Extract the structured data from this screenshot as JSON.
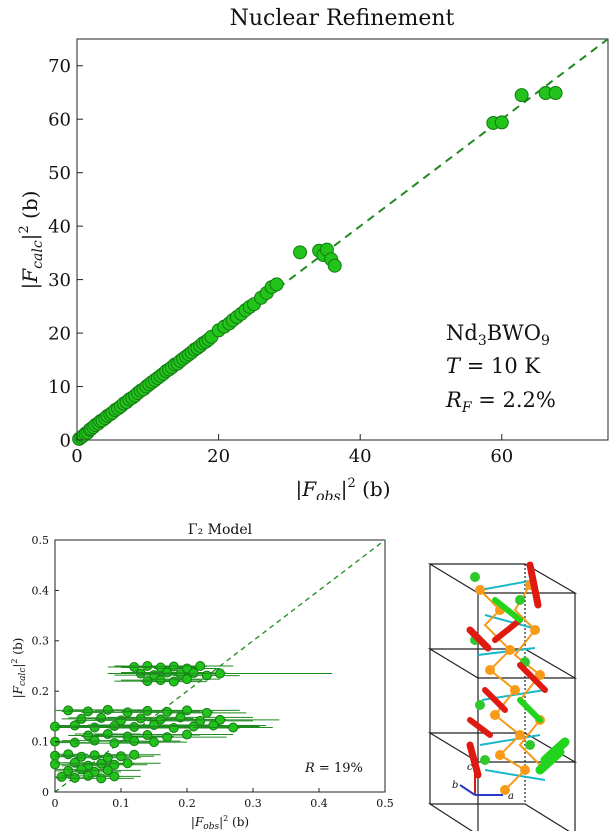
{
  "chart_data": [
    {
      "type": "scatter",
      "title": "Nuclear Refinement",
      "xlabel": "|F_obs|² (b)",
      "ylabel": "|F_calc|² (b)",
      "xlim": [
        0,
        75
      ],
      "ylim": [
        0,
        75
      ],
      "xticks": [
        "0",
        "20",
        "40",
        "60"
      ],
      "yticks": [
        "0",
        "10",
        "20",
        "30",
        "40",
        "50",
        "60",
        "70"
      ],
      "grid": false,
      "reference_line": {
        "style": "dashed",
        "from": [
          0,
          0
        ],
        "to": [
          75,
          75
        ]
      },
      "annotation": [
        "Nd₃BWO₉",
        "T = 10 K",
        "R_F = 2.2%"
      ],
      "colors": {
        "marker": "#22c31b",
        "marker_edge": "#137a12",
        "line": "#1f8a1f"
      },
      "series": [
        {
          "x": [
            0.3,
            0.6,
            0.9,
            1.2,
            1.5,
            1.8,
            2.0,
            2.3,
            2.6,
            3.0,
            3.3,
            3.6,
            4.0,
            4.3,
            4.7,
            5.0,
            5.4,
            5.8,
            6.2,
            6.6,
            7.0,
            7.4,
            7.8,
            8.2,
            8.6,
            9.0,
            9.4,
            9.8,
            10.2,
            10.6,
            11.0,
            11.4,
            11.8,
            12.2,
            12.6,
            13.0,
            13.4,
            13.8,
            14.2,
            14.6,
            15.0,
            15.4,
            15.8,
            16.2,
            16.6,
            17.0,
            17.4,
            17.8,
            18.2,
            18.6,
            19.0,
            20.0,
            20.8,
            21.5,
            22.0,
            22.6,
            23.2,
            23.8,
            24.4,
            25.0,
            26.0,
            26.8,
            27.5,
            28.2,
            31.5,
            34.2,
            34.8,
            35.3,
            35.9,
            36.4,
            58.8,
            60.0,
            62.8,
            66.2,
            67.6
          ],
          "y": [
            0.2,
            0.5,
            0.8,
            1.2,
            1.4,
            1.9,
            2.1,
            2.4,
            2.8,
            3.1,
            3.5,
            3.7,
            4.1,
            4.5,
            4.8,
            5.1,
            5.6,
            5.9,
            6.3,
            6.8,
            7.1,
            7.6,
            7.9,
            8.3,
            8.8,
            9.2,
            9.5,
            10.0,
            10.4,
            10.8,
            11.2,
            11.6,
            12.0,
            12.4,
            12.9,
            13.2,
            13.6,
            14.1,
            14.3,
            14.8,
            15.2,
            15.6,
            16.0,
            16.4,
            16.9,
            17.2,
            17.6,
            18.1,
            18.4,
            18.8,
            19.3,
            20.5,
            21.2,
            21.8,
            22.4,
            23.0,
            23.6,
            24.3,
            24.9,
            25.4,
            26.6,
            27.5,
            28.6,
            29.1,
            35.1,
            35.4,
            34.6,
            35.6,
            33.8,
            32.6,
            59.3,
            59.4,
            64.5,
            64.9,
            64.9
          ]
        }
      ]
    },
    {
      "type": "scatter",
      "title": "Γ₂ Model",
      "xlabel": "|F_obs|² (b)",
      "ylabel": "|F_calc|² (b)",
      "xlim": [
        0,
        0.5
      ],
      "ylim": [
        0,
        0.5
      ],
      "xticks": [
        "0",
        "0.1",
        "0.2",
        "0.3",
        "0.4",
        "0.5"
      ],
      "yticks": [
        "0",
        "0.1",
        "0.2",
        "0.3",
        "0.4",
        "0.5"
      ],
      "grid": false,
      "reference_line": {
        "style": "dashed",
        "from": [
          0,
          0
        ],
        "to": [
          0.5,
          0.5
        ]
      },
      "annotation": [
        "R = 19%"
      ],
      "colors": {
        "marker": "#22c31b",
        "marker_edge": "#137a12",
        "line": "#1f8a1f"
      },
      "series": [
        {
          "x": [
            0.12,
            0.14,
            0.16,
            0.18,
            0.2,
            0.22,
            0.13,
            0.15,
            0.17,
            0.19,
            0.21,
            0.23,
            0.25,
            0.14,
            0.16,
            0.18,
            0.2,
            0.02,
            0.05,
            0.08,
            0.11,
            0.14,
            0.17,
            0.2,
            0.23,
            0.04,
            0.07,
            0.1,
            0.13,
            0.16,
            0.19,
            0.22,
            0.25,
            0.0,
            0.03,
            0.06,
            0.09,
            0.12,
            0.15,
            0.18,
            0.21,
            0.24,
            0.27,
            0.05,
            0.08,
            0.11,
            0.14,
            0.17,
            0.2,
            0.0,
            0.03,
            0.06,
            0.09,
            0.12,
            0.15,
            0.0,
            0.02,
            0.04,
            0.06,
            0.08,
            0.1,
            0.12,
            0.0,
            0.03,
            0.05,
            0.07,
            0.09,
            0.11,
            0.02,
            0.04,
            0.06,
            0.08,
            0.01,
            0.03,
            0.05,
            0.07,
            0.09
          ],
          "y": [
            0.248,
            0.25,
            0.247,
            0.249,
            0.245,
            0.25,
            0.235,
            0.232,
            0.237,
            0.234,
            0.236,
            0.231,
            0.235,
            0.22,
            0.222,
            0.219,
            0.224,
            0.162,
            0.16,
            0.163,
            0.158,
            0.161,
            0.159,
            0.162,
            0.157,
            0.145,
            0.147,
            0.142,
            0.146,
            0.144,
            0.148,
            0.141,
            0.143,
            0.13,
            0.132,
            0.128,
            0.131,
            0.129,
            0.133,
            0.127,
            0.13,
            0.132,
            0.128,
            0.112,
            0.115,
            0.11,
            0.113,
            0.109,
            0.114,
            0.1,
            0.098,
            0.102,
            0.097,
            0.101,
            0.099,
            0.072,
            0.075,
            0.07,
            0.073,
            0.068,
            0.071,
            0.074,
            0.055,
            0.058,
            0.052,
            0.056,
            0.054,
            0.057,
            0.042,
            0.045,
            0.04,
            0.043,
            0.03,
            0.028,
            0.032,
            0.027,
            0.031
          ],
          "xerr": [
            0.04,
            0.05,
            0.06,
            0.05,
            0.05,
            0.05,
            0.05,
            0.06,
            0.07,
            0.06,
            0.05,
            0.05,
            0.17,
            0.05,
            0.06,
            0.05,
            0.05,
            0.03,
            0.04,
            0.06,
            0.07,
            0.08,
            0.07,
            0.08,
            0.06,
            0.03,
            0.05,
            0.07,
            0.08,
            0.1,
            0.11,
            0.08,
            0.09,
            0.03,
            0.04,
            0.06,
            0.08,
            0.09,
            0.1,
            0.1,
            0.1,
            0.08,
            0.06,
            0.03,
            0.05,
            0.07,
            0.08,
            0.09,
            0.07,
            0.03,
            0.03,
            0.05,
            0.06,
            0.07,
            0.05,
            0.03,
            0.03,
            0.04,
            0.05,
            0.05,
            0.05,
            0.04,
            0.03,
            0.03,
            0.04,
            0.05,
            0.05,
            0.05,
            0.03,
            0.04,
            0.04,
            0.05,
            0.02,
            0.03,
            0.04,
            0.05,
            0.04
          ]
        }
      ]
    }
  ],
  "structure": {
    "axes_labels": [
      "b",
      "c",
      "a"
    ],
    "colors": {
      "frame": "#222222",
      "bond": "#18b8c8",
      "bond2": "#f59a1a",
      "atom_orange": "#f89a18",
      "atom_green": "#2ec82a",
      "arrow_red": "#e01a10",
      "arrow_green": "#22d41c",
      "axis_blue": "#2a3ac8"
    }
  }
}
